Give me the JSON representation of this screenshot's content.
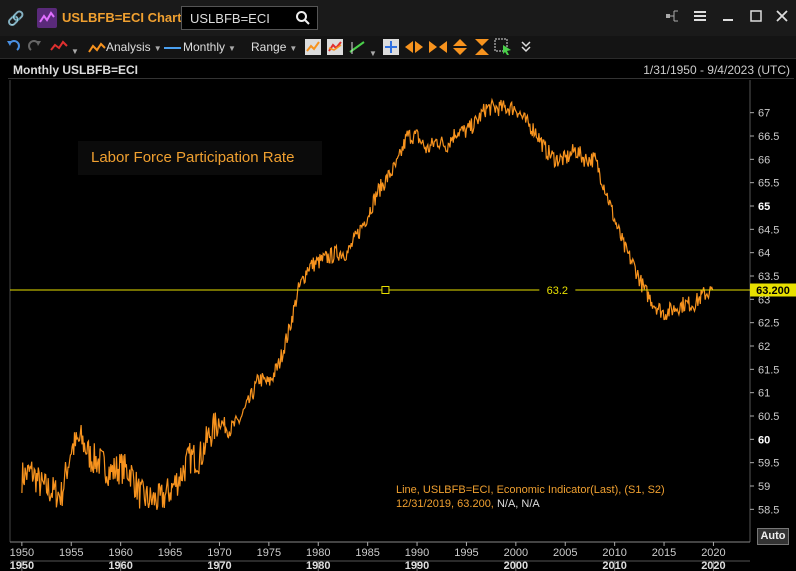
{
  "window": {
    "title": "USLBFB=ECI Chart",
    "search_value": "USLBFB=ECI"
  },
  "toolbar": {
    "analysis_label": "Analysis",
    "interval_label": "Monthly",
    "range_label": "Range"
  },
  "chart_header": {
    "title": "Monthly USLBFB=ECI",
    "date_range": "1/31/1950 - 9/4/2023 (UTC)"
  },
  "chart": {
    "annotation": "Labor Force Participation Rate",
    "hline_label": "63.2",
    "last_value_tag": "63.200",
    "legend_line1": "Line, USLBFB=ECI, Economic Indicator(Last), (S1, S2)",
    "legend_line2_prefix": "12/31/2019, 63.200, ",
    "legend_line2_suffix": "N/A, N/A",
    "auto_label": "Auto",
    "colors": {
      "line": "#f7931e",
      "hline": "#e8e000",
      "text_orange": "#f0a030"
    }
  },
  "chart_data": {
    "type": "line",
    "title": "Monthly USLBFB=ECI",
    "annotation": "Labor Force Participation Rate",
    "x": [
      1950,
      1951,
      1952,
      1953,
      1954,
      1955,
      1956,
      1957,
      1958,
      1959,
      1960,
      1961,
      1962,
      1963,
      1964,
      1965,
      1966,
      1967,
      1968,
      1969,
      1970,
      1971,
      1972,
      1973,
      1974,
      1975,
      1976,
      1977,
      1978,
      1979,
      1980,
      1981,
      1982,
      1983,
      1984,
      1985,
      1986,
      1987,
      1988,
      1989,
      1990,
      1991,
      1992,
      1993,
      1994,
      1995,
      1996,
      1997,
      1998,
      1999,
      2000,
      2001,
      2002,
      2003,
      2004,
      2005,
      2006,
      2007,
      2008,
      2009,
      2010,
      2011,
      2012,
      2013,
      2014,
      2015,
      2016,
      2017,
      2018,
      2019,
      2019.92
    ],
    "values": [
      59.2,
      59.3,
      59.0,
      58.9,
      58.8,
      59.8,
      60.0,
      59.6,
      59.5,
      59.3,
      59.4,
      59.3,
      58.8,
      58.7,
      58.7,
      58.9,
      59.2,
      59.6,
      59.6,
      60.1,
      60.4,
      60.2,
      60.4,
      60.8,
      61.3,
      61.2,
      61.6,
      62.3,
      63.2,
      63.7,
      63.8,
      63.9,
      64.0,
      64.0,
      64.4,
      64.8,
      65.3,
      65.6,
      65.9,
      66.5,
      66.5,
      66.2,
      66.4,
      66.3,
      66.6,
      66.6,
      66.8,
      67.1,
      67.1,
      67.1,
      67.1,
      66.8,
      66.6,
      66.2,
      66.0,
      66.0,
      66.2,
      66.0,
      66.0,
      65.4,
      64.7,
      64.1,
      63.7,
      63.2,
      62.9,
      62.7,
      62.8,
      62.9,
      62.9,
      63.1,
      63.2
    ],
    "xlim": [
      1948.8,
      2023.7
    ],
    "ylim": [
      57.8,
      67.7
    ],
    "x_ticks": [
      1950,
      1955,
      1960,
      1965,
      1970,
      1975,
      1980,
      1985,
      1990,
      1995,
      2000,
      2005,
      2010,
      2015,
      2020
    ],
    "decades": [
      1950,
      1960,
      1970,
      1980,
      1990,
      2000,
      2010,
      2020
    ],
    "y_ticks": [
      58.5,
      59,
      59.5,
      60,
      60.5,
      61,
      61.5,
      62,
      62.5,
      63,
      63.5,
      64,
      64.5,
      65,
      65.5,
      66,
      66.5,
      67
    ],
    "y_ticks_bold": [
      60,
      65
    ],
    "hline": 63.2,
    "grid": false
  }
}
